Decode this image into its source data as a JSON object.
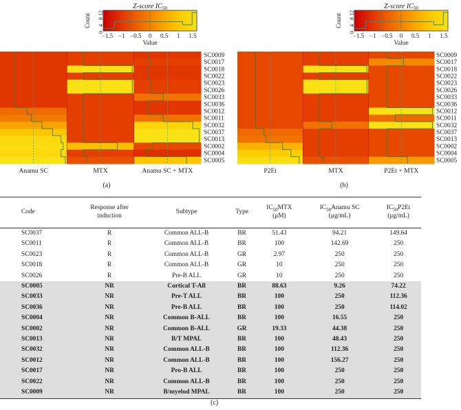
{
  "figure": {
    "legend": {
      "title": "Z-score IC",
      "title_sub": "50",
      "ylabel": "Count",
      "yticks": [
        "0",
        "4",
        "8",
        "12"
      ],
      "xticks": [
        "−1.5",
        "−1",
        "−0.5",
        "0",
        "0.5",
        "1",
        "1.5"
      ],
      "xlabel": "Value"
    },
    "rows": [
      "SC0009",
      "SC0017",
      "SC0018",
      "SC0022",
      "SC0023",
      "SC0026",
      "SC0033",
      "SC0036",
      "SC0012",
      "SC0011",
      "SC0032",
      "SC0037",
      "SC0013",
      "SC0002",
      "SC0004",
      "SC0005"
    ],
    "panel_a": {
      "label": "(a)",
      "columns": [
        "Anamu SC",
        "MTX",
        "Anamu SC + MTX"
      ]
    },
    "panel_b": {
      "label": "(b)",
      "columns": [
        "P2Et",
        "MTX",
        "P2Et + MTX"
      ]
    },
    "panel_c_label": "(c)"
  },
  "chart_data": [
    {
      "type": "heatmap",
      "title": "Z-score IC50 (Anamu SC, MTX, Anamu SC + MTX)",
      "x": [
        "Anamu SC",
        "MTX",
        "Anamu SC + MTX"
      ],
      "y": [
        "SC0009",
        "SC0017",
        "SC0018",
        "SC0022",
        "SC0023",
        "SC0026",
        "SC0033",
        "SC0036",
        "SC0012",
        "SC0011",
        "SC0032",
        "SC0037",
        "SC0013",
        "SC0002",
        "SC0004",
        "SC0005"
      ],
      "values": [
        [
          -0.9,
          -0.8,
          -0.9
        ],
        [
          -0.9,
          -0.8,
          -0.8
        ],
        [
          -0.9,
          1.5,
          -0.9
        ],
        [
          -0.9,
          -0.8,
          -0.9
        ],
        [
          -0.9,
          1.5,
          -0.8
        ],
        [
          -0.9,
          1.5,
          -0.8
        ],
        [
          -0.9,
          -0.8,
          -0.2
        ],
        [
          -0.9,
          -0.8,
          -0.9
        ],
        [
          -0.3,
          -0.8,
          -0.9
        ],
        [
          -0.1,
          -0.8,
          -0.2
        ],
        [
          0.4,
          -0.8,
          1.2
        ],
        [
          0.9,
          -0.8,
          1.5
        ],
        [
          1.3,
          -0.8,
          1.5
        ],
        [
          1.4,
          0.8,
          -0.7
        ],
        [
          1.3,
          -0.8,
          -1.0
        ],
        [
          1.5,
          -0.6,
          0.9
        ]
      ],
      "colorbar": {
        "label": "Value",
        "range": [
          -1.5,
          1.5
        ]
      }
    },
    {
      "type": "heatmap",
      "title": "Z-score IC50 (P2Et, MTX, P2Et + MTX)",
      "x": [
        "P2Et",
        "MTX",
        "P2Et + MTX"
      ],
      "y": [
        "SC0009",
        "SC0017",
        "SC0018",
        "SC0022",
        "SC0023",
        "SC0026",
        "SC0033",
        "SC0036",
        "SC0012",
        "SC0011",
        "SC0032",
        "SC0037",
        "SC0013",
        "SC0002",
        "SC0004",
        "SC0005"
      ],
      "values": [
        [
          -0.7,
          -0.8,
          -0.7
        ],
        [
          -0.7,
          -0.8,
          0.1
        ],
        [
          -0.7,
          1.5,
          -0.7
        ],
        [
          -0.7,
          -0.8,
          -0.7
        ],
        [
          -0.7,
          1.5,
          -0.7
        ],
        [
          -0.7,
          1.5,
          -0.7
        ],
        [
          -0.7,
          -0.8,
          -0.7
        ],
        [
          -0.7,
          -0.8,
          -0.7
        ],
        [
          -0.7,
          -0.8,
          1.5
        ],
        [
          -0.7,
          -0.8,
          -0.3
        ],
        [
          -0.7,
          -0.2,
          1.5
        ],
        [
          -0.3,
          -0.8,
          -0.7
        ],
        [
          -0.2,
          -0.8,
          -0.7
        ],
        [
          0.6,
          -0.8,
          -0.7
        ],
        [
          1.0,
          -0.8,
          -0.7
        ],
        [
          1.4,
          -0.6,
          0.3
        ]
      ],
      "colorbar": {
        "label": "Value",
        "range": [
          -1.5,
          1.5
        ]
      }
    }
  ],
  "table": {
    "headers": [
      {
        "l1": "Code",
        "l2": ""
      },
      {
        "l1": "Response after",
        "l2": "induction"
      },
      {
        "l1": "Subtype",
        "l2": ""
      },
      {
        "l1": "Type",
        "l2": ""
      },
      {
        "l1": "IC",
        "sub": "50",
        "rest": "MTX",
        "l2": "(μM)"
      },
      {
        "l1": "IC",
        "sub": "50",
        "rest": "Anamu SC",
        "l2": "(μg/mL)"
      },
      {
        "l1": "IC",
        "sub": "50",
        "rest": "P2Et",
        "l2": "(μg/mL)"
      }
    ],
    "rows": [
      {
        "code": "SC0037",
        "resp": "R",
        "subtype": "Common ALL-B",
        "type": "BR",
        "mtx": "51.43",
        "anamu": "94.21",
        "p2et": "149.64",
        "nr": false
      },
      {
        "code": "SC0011",
        "resp": "R",
        "subtype": "Common ALL-B",
        "type": "BR",
        "mtx": "100",
        "anamu": "142.69",
        "p2et": "250",
        "nr": false
      },
      {
        "code": "SC0023",
        "resp": "R",
        "subtype": "Common ALL-B",
        "type": "GR",
        "mtx": "2.97",
        "anamu": "250",
        "p2et": "250",
        "nr": false
      },
      {
        "code": "SC0018",
        "resp": "R",
        "subtype": "Common ALL-B",
        "type": "GR",
        "mtx": "10",
        "anamu": "250",
        "p2et": "250",
        "nr": false
      },
      {
        "code": "SC0026",
        "resp": "R",
        "subtype": "Pre-B ALL",
        "type": "GR",
        "mtx": "10",
        "anamu": "250",
        "p2et": "250",
        "nr": false
      },
      {
        "code": "SC0005",
        "resp": "NR",
        "subtype": "Cortical T-All",
        "type": "BR",
        "mtx": "88.63",
        "anamu": "9.26",
        "p2et": "74.22",
        "nr": true
      },
      {
        "code": "SC0033",
        "resp": "NR",
        "subtype": "Pre-T ALL",
        "type": "BR",
        "mtx": "100",
        "anamu": "250",
        "p2et": "112.36",
        "nr": true
      },
      {
        "code": "SC0036",
        "resp": "NR",
        "subtype": "Pre-B ALL",
        "type": "BR",
        "mtx": "100",
        "anamu": "250",
        "p2et": "114.02",
        "nr": true
      },
      {
        "code": "SC0004",
        "resp": "NR",
        "subtype": "Common B-ALL",
        "type": "BR",
        "mtx": "100",
        "anamu": "16.55",
        "p2et": "250",
        "nr": true
      },
      {
        "code": "SC0002",
        "resp": "NR",
        "subtype": "Common B-ALL",
        "type": "GR",
        "mtx": "19.33",
        "anamu": "44.38",
        "p2et": "250",
        "nr": true
      },
      {
        "code": "SC0013",
        "resp": "NR",
        "subtype": "B/T MPAL",
        "type": "BR",
        "mtx": "100",
        "anamu": "48.43",
        "p2et": "250",
        "nr": true
      },
      {
        "code": "SC0032",
        "resp": "NR",
        "subtype": "Common ALL-B",
        "type": "BR",
        "mtx": "100",
        "anamu": "112.36",
        "p2et": "250",
        "nr": true
      },
      {
        "code": "SC0012",
        "resp": "NR",
        "subtype": "Common ALL-B",
        "type": "BR",
        "mtx": "100",
        "anamu": "156.27",
        "p2et": "250",
        "nr": true
      },
      {
        "code": "SC0017",
        "resp": "NR",
        "subtype": "Pro-B ALL",
        "type": "BR",
        "mtx": "100",
        "anamu": "250",
        "p2et": "250",
        "nr": true
      },
      {
        "code": "SC0022",
        "resp": "NR",
        "subtype": "Common ALL-B",
        "type": "BR",
        "mtx": "100",
        "anamu": "250",
        "p2et": "250",
        "nr": true
      },
      {
        "code": "SC0009",
        "resp": "NR",
        "subtype": "B/myelod MPAL",
        "type": "BR",
        "mtx": "100",
        "anamu": "250",
        "p2et": "250",
        "nr": true
      }
    ]
  }
}
